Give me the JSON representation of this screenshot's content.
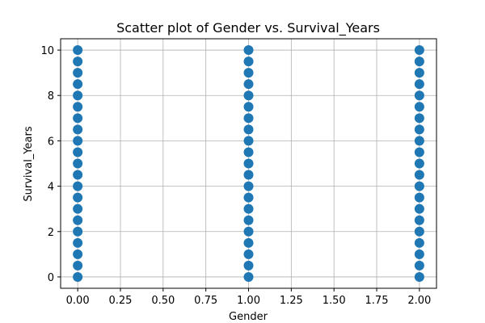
{
  "chart_data": {
    "type": "scatter",
    "title": "Scatter plot of Gender vs. Survival_Years",
    "xlabel": "Gender",
    "ylabel": "Survival_Years",
    "xlim": [
      -0.1,
      2.1
    ],
    "ylim": [
      -0.5,
      10.5
    ],
    "x_ticks": [
      0.0,
      0.25,
      0.5,
      0.75,
      1.0,
      1.25,
      1.5,
      1.75,
      2.0
    ],
    "x_tick_labels": [
      "0.00",
      "0.25",
      "0.50",
      "0.75",
      "1.00",
      "1.25",
      "1.50",
      "1.75",
      "2.00"
    ],
    "y_ticks": [
      0,
      2,
      4,
      6,
      8,
      10
    ],
    "y_tick_labels": [
      "0",
      "2",
      "4",
      "6",
      "8",
      "10"
    ],
    "grid": true,
    "marker_color": "#1f77b4",
    "series": [
      {
        "x": [
          0,
          0,
          0,
          0,
          0,
          0,
          0,
          0,
          0,
          0,
          0,
          0,
          0,
          0,
          0,
          0,
          0,
          0,
          0,
          0,
          0,
          1,
          1,
          1,
          1,
          1,
          1,
          1,
          1,
          1,
          1,
          1,
          1,
          1,
          1,
          1,
          1,
          1,
          1,
          1,
          1,
          1,
          2,
          2,
          2,
          2,
          2,
          2,
          2,
          2,
          2,
          2,
          2,
          2,
          2,
          2,
          2,
          2,
          2,
          2,
          2,
          2,
          2
        ],
        "y": [
          0,
          0.5,
          1,
          1.5,
          2,
          2.5,
          3,
          3.5,
          4,
          4.5,
          5,
          5.5,
          6,
          6.5,
          7,
          7.5,
          8,
          8.5,
          9,
          9.5,
          10,
          0,
          0.5,
          1,
          1.5,
          2,
          2.5,
          3,
          3.5,
          4,
          4.5,
          5,
          5.5,
          6,
          6.5,
          7,
          7.5,
          8,
          8.5,
          9,
          9.5,
          10,
          0,
          0.5,
          1,
          1.5,
          2,
          2.5,
          3,
          3.5,
          4,
          4.5,
          5,
          5.5,
          6,
          6.5,
          7,
          7.5,
          8,
          8.5,
          9,
          9.5,
          10
        ]
      }
    ]
  }
}
